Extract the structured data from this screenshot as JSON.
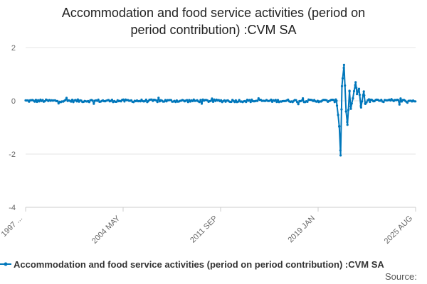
{
  "chart_data": {
    "type": "line",
    "title_lines": [
      "Accommodation and food service activities (period on",
      "period contribution) :CVM SA"
    ],
    "ylim": [
      -4,
      2
    ],
    "y_ticks": [
      2,
      0,
      -2,
      -4
    ],
    "x_tick_labels": [
      "1997 ...",
      "2004 MAY",
      "2011 SEP",
      "2019 JAN",
      "2025 AUG"
    ],
    "series": [
      {
        "name": "Accommodation and food service activities (period on period contribution) :CVM SA",
        "color": "#0077bb",
        "noise_amplitude": 0.05,
        "x_start": 1997.0,
        "x_end": 2025.6,
        "key_points": [
          {
            "x": 2019.8,
            "y": 0.0
          },
          {
            "x": 2020.0,
            "y": -0.95
          },
          {
            "x": 2020.1,
            "y": -2.05
          },
          {
            "x": 2020.2,
            "y": 0.55
          },
          {
            "x": 2020.35,
            "y": 1.35
          },
          {
            "x": 2020.5,
            "y": -0.4
          },
          {
            "x": 2020.6,
            "y": -0.9
          },
          {
            "x": 2020.75,
            "y": 0.35
          },
          {
            "x": 2020.85,
            "y": -0.3
          },
          {
            "x": 2021.0,
            "y": 0.1
          },
          {
            "x": 2021.2,
            "y": 0.7
          },
          {
            "x": 2021.3,
            "y": 0.25
          },
          {
            "x": 2021.45,
            "y": 0.45
          },
          {
            "x": 2021.6,
            "y": -0.25
          },
          {
            "x": 2021.8,
            "y": 0.35
          },
          {
            "x": 2021.9,
            "y": -0.1
          },
          {
            "x": 2022.2,
            "y": 0.05
          }
        ]
      }
    ],
    "legend_position": "bottom-left",
    "source_label": "Source:"
  }
}
